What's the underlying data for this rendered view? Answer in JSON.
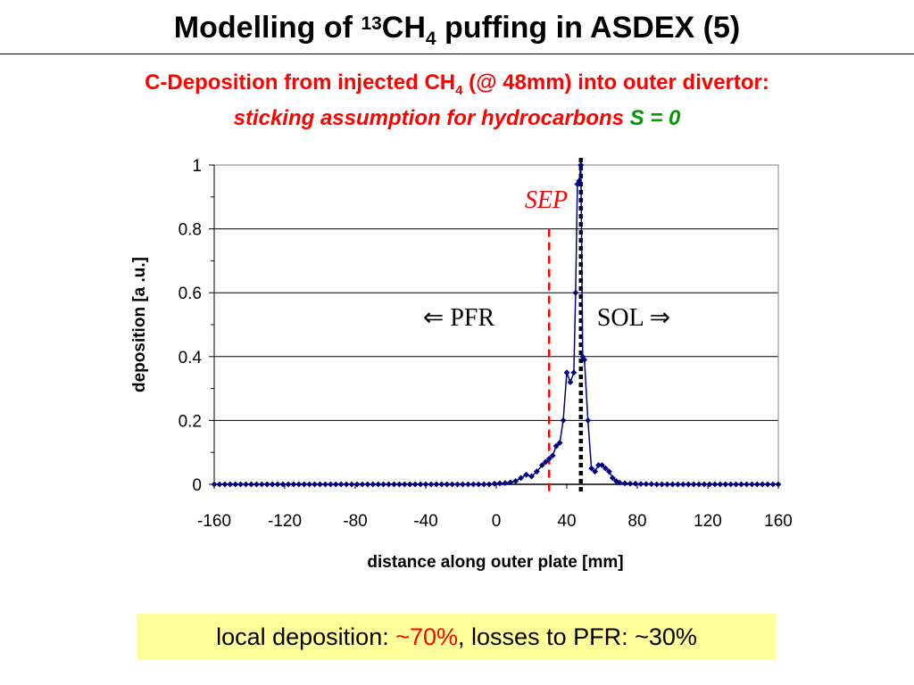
{
  "title": {
    "prefix": "Modelling of ",
    "sup": "13",
    "main": "CH",
    "sub": "4",
    "suffix": " puffing in ASDEX (5)"
  },
  "subtitle": {
    "line1_prefix": "C-Deposition from injected CH",
    "line1_sub": "4",
    "line1_suffix": " (@ 48mm) into outer divertor:",
    "line2_italic": "sticking assumption for hydrocarbons ",
    "line2_eq": "S = 0"
  },
  "note": {
    "prefix": "local deposition: ",
    "highlight": "~70%",
    "suffix": ", losses to PFR: ~30%"
  },
  "colors": {
    "series": "#000080",
    "sep_line": "#ff0000",
    "sep_label": "#ff0000",
    "title_red": "#ff0000",
    "green": "#009900",
    "note_bg": "#ffff99"
  },
  "chart_data": {
    "type": "line",
    "xlabel": "distance along outer plate [mm]",
    "ylabel": "deposition [a .u.]",
    "xlim": [
      -160,
      160
    ],
    "ylim": [
      0,
      1
    ],
    "xticks": [
      -160,
      -120,
      -80,
      -40,
      0,
      40,
      80,
      120,
      160
    ],
    "yticks": [
      0,
      0.2,
      0.4,
      0.6,
      0.8,
      1
    ],
    "ytick_labels": [
      "0",
      "0.2",
      "0.4",
      "0.6",
      "0.8",
      "1"
    ],
    "grid": "horizontal",
    "annotations": {
      "sep_label": "SEP",
      "pfr_label": "⇐ PFR",
      "sol_label": "SOL ⇒",
      "sep_dashed_x": 30,
      "strike_point_x": 48
    },
    "series": [
      {
        "x": [
          -160,
          -157,
          -154,
          -151,
          -148,
          -145,
          -142,
          -139,
          -136,
          -133,
          -130,
          -127,
          -124,
          -121,
          -118,
          -115,
          -112,
          -109,
          -106,
          -103,
          -100,
          -97,
          -94,
          -91,
          -88,
          -85,
          -82,
          -79,
          -76,
          -73,
          -70,
          -67,
          -64,
          -61,
          -58,
          -55,
          -52,
          -49,
          -46,
          -43,
          -40,
          -37,
          -34,
          -31,
          -28,
          -25,
          -22,
          -19,
          -16,
          -13,
          -10,
          -7,
          -4,
          -1,
          2,
          5,
          8,
          11,
          14,
          17,
          20,
          23,
          26,
          28,
          30,
          32,
          34,
          36,
          38,
          40,
          42,
          44,
          45,
          46,
          47,
          48,
          49,
          50,
          52,
          54,
          56,
          58,
          60,
          62,
          64,
          66,
          68,
          70,
          73,
          76,
          79,
          82,
          85,
          88,
          91,
          94,
          97,
          100,
          103,
          106,
          109,
          112,
          115,
          118,
          121,
          124,
          127,
          130,
          133,
          136,
          139,
          142,
          145,
          148,
          151,
          154,
          157,
          160
        ],
        "values": [
          0,
          0,
          0,
          0,
          0,
          0,
          0,
          0,
          0,
          0,
          0,
          0,
          0,
          0,
          0,
          0,
          0,
          0,
          0,
          0,
          0,
          0,
          0,
          0,
          0,
          0,
          0,
          0,
          0,
          0,
          0,
          0,
          0,
          0,
          0,
          0,
          0,
          0,
          0,
          0,
          0,
          0,
          0,
          0,
          0,
          0,
          0,
          0,
          0,
          0,
          0,
          0,
          0,
          0.002,
          0.003,
          0.004,
          0.006,
          0.01,
          0.02,
          0.03,
          0.025,
          0.04,
          0.06,
          0.07,
          0.08,
          0.09,
          0.12,
          0.13,
          0.2,
          0.35,
          0.32,
          0.35,
          0.6,
          0.94,
          0.95,
          1.0,
          0.4,
          0.39,
          0.2,
          0.05,
          0.04,
          0.06,
          0.06,
          0.05,
          0.04,
          0.02,
          0.01,
          0.005,
          0.003,
          0.002,
          0.002,
          0.001,
          0.001,
          0.001,
          0,
          0,
          0,
          0,
          0,
          0,
          0,
          0,
          0,
          0,
          0,
          0,
          0,
          0,
          0,
          0,
          0,
          0,
          0,
          0,
          0,
          0,
          0,
          0
        ]
      }
    ]
  }
}
